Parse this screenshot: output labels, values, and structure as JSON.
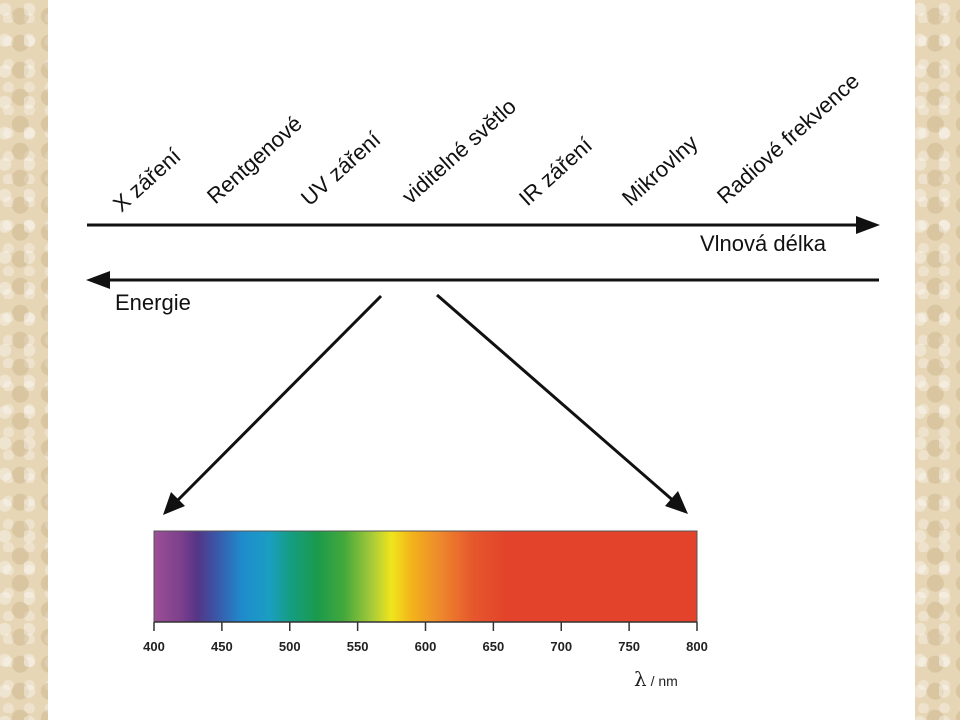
{
  "spectrum_bands": [
    {
      "label": "X záření"
    },
    {
      "label": "Rentgenové"
    },
    {
      "label": "UV záření"
    },
    {
      "label": "viditelné světlo"
    },
    {
      "label": "IR záření"
    },
    {
      "label": "Mikrovlny"
    },
    {
      "label": "Radiové frekvence"
    }
  ],
  "axes": {
    "wavelength_label": "Vlnová délka",
    "energy_label": "Energie"
  },
  "visible_spectrum": {
    "ticks": [
      "400",
      "450",
      "500",
      "550",
      "600",
      "650",
      "700",
      "750",
      "800"
    ],
    "unit_symbol": "λ",
    "unit_text": " / nm",
    "range_nm": [
      400,
      800
    ],
    "color_stops": [
      {
        "nm": 400,
        "color": "#9c4f96"
      },
      {
        "nm": 420,
        "color": "#7c3f8c"
      },
      {
        "nm": 432,
        "color": "#553586"
      },
      {
        "nm": 445,
        "color": "#3c54a6"
      },
      {
        "nm": 465,
        "color": "#1f8bcd"
      },
      {
        "nm": 485,
        "color": "#1a9ec2"
      },
      {
        "nm": 500,
        "color": "#159d84"
      },
      {
        "nm": 520,
        "color": "#1a9a4c"
      },
      {
        "nm": 540,
        "color": "#43a83b"
      },
      {
        "nm": 560,
        "color": "#a5c93a"
      },
      {
        "nm": 575,
        "color": "#f0e51c"
      },
      {
        "nm": 590,
        "color": "#f2b31a"
      },
      {
        "nm": 610,
        "color": "#ee8a2c"
      },
      {
        "nm": 635,
        "color": "#e6572d"
      },
      {
        "nm": 660,
        "color": "#e2432a"
      },
      {
        "nm": 800,
        "color": "#e2432a"
      }
    ]
  }
}
